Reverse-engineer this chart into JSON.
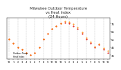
{
  "title": "Milwukee Outdoor Temperature\nvs Heat Index\n(24 Hours)",
  "title_fontsize": 3.8,
  "background_color": "#ffffff",
  "plot_bg_color": "#ffffff",
  "grid_color": "#888888",
  "temp_color": "#dd0000",
  "heat_color": "#ff8800",
  "marker_size": 1.0,
  "hours": [
    0,
    1,
    2,
    3,
    4,
    5,
    6,
    7,
    8,
    9,
    10,
    11,
    12,
    13,
    14,
    15,
    16,
    17,
    18,
    19,
    20,
    21,
    22,
    23
  ],
  "temperature": [
    55,
    50,
    45,
    42,
    38,
    35,
    38,
    45,
    55,
    62,
    68,
    72,
    75,
    76,
    75,
    72,
    68,
    62,
    55,
    50,
    45,
    48,
    42,
    38
  ],
  "heat_index": [
    55,
    50,
    45,
    42,
    38,
    35,
    38,
    45,
    55,
    62,
    68,
    72,
    75,
    78,
    77,
    74,
    70,
    64,
    57,
    52,
    46,
    49,
    44,
    40
  ],
  "ylim": [
    30,
    82
  ],
  "yticks": [
    35,
    45,
    55,
    65,
    75
  ],
  "ytick_labels": [
    "35",
    "45",
    "55",
    "65",
    "75"
  ],
  "xtick_hours": [
    0,
    1,
    2,
    3,
    4,
    5,
    6,
    7,
    8,
    9,
    10,
    11,
    12,
    13,
    14,
    15,
    16,
    17,
    18,
    19,
    20,
    21,
    22,
    23
  ],
  "xtick_labels": [
    "12",
    "1",
    "2",
    "3",
    "4",
    "5",
    "6",
    "7",
    "8",
    "9",
    "10",
    "11",
    "12",
    "1",
    "2",
    "3",
    "4",
    "5",
    "6",
    "7",
    "8",
    "9",
    "10",
    "11"
  ],
  "xlabel_fontsize": 2.5,
  "ylabel_fontsize": 2.8,
  "legend_labels": [
    "Outdoor Temp",
    "Heat Index"
  ],
  "vgrid_hours": [
    0,
    2,
    4,
    6,
    8,
    10,
    12,
    14,
    16,
    18,
    20,
    22
  ]
}
